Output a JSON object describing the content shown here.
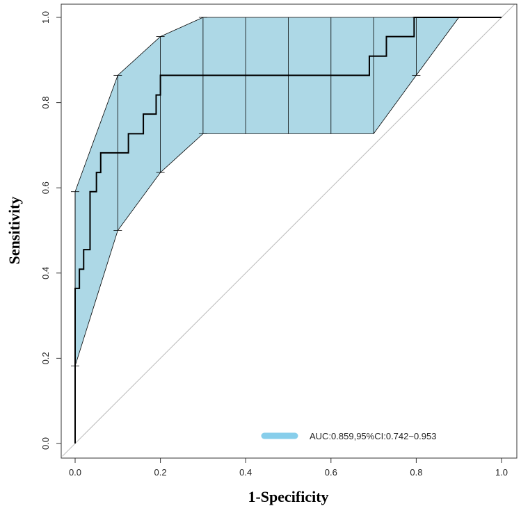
{
  "chart_data": {
    "type": "line",
    "title": "",
    "xlabel": "1-Specificity",
    "ylabel": "Sensitivity",
    "xlim": [
      0,
      1
    ],
    "ylim": [
      0,
      1
    ],
    "x_ticks": [
      "0.0",
      "0.2",
      "0.4",
      "0.6",
      "0.8",
      "1.0"
    ],
    "y_ticks": [
      "0.0",
      "0.2",
      "0.4",
      "0.6",
      "0.8",
      "1.0"
    ],
    "series": [
      {
        "name": "ROC curve",
        "color": "#000000",
        "points": [
          [
            0,
            0
          ],
          [
            0,
            0.364
          ],
          [
            0.01,
            0.364
          ],
          [
            0.01,
            0.409
          ],
          [
            0.02,
            0.409
          ],
          [
            0.02,
            0.455
          ],
          [
            0.035,
            0.455
          ],
          [
            0.035,
            0.591
          ],
          [
            0.05,
            0.591
          ],
          [
            0.05,
            0.636
          ],
          [
            0.06,
            0.636
          ],
          [
            0.06,
            0.682
          ],
          [
            0.125,
            0.682
          ],
          [
            0.125,
            0.727
          ],
          [
            0.16,
            0.727
          ],
          [
            0.16,
            0.773
          ],
          [
            0.19,
            0.773
          ],
          [
            0.19,
            0.818
          ],
          [
            0.2,
            0.818
          ],
          [
            0.2,
            0.864
          ],
          [
            0.69,
            0.864
          ],
          [
            0.69,
            0.909
          ],
          [
            0.73,
            0.909
          ],
          [
            0.73,
            0.955
          ],
          [
            0.795,
            0.955
          ],
          [
            0.795,
            1
          ],
          [
            1,
            1
          ]
        ]
      },
      {
        "name": "Reference line",
        "color": "#bbbbbb",
        "points": [
          [
            -0.03,
            -0.03
          ],
          [
            1.03,
            1.03
          ]
        ]
      }
    ],
    "ci_band": {
      "color": "#add8e6",
      "x": [
        0,
        0.1,
        0.2,
        0.3,
        0.4,
        0.5,
        0.6,
        0.7,
        0.8,
        0.9
      ],
      "lower": [
        0.182,
        0.5,
        0.636,
        0.727,
        0.727,
        0.727,
        0.727,
        0.727,
        0.864,
        1.0
      ],
      "upper": [
        0.591,
        0.864,
        0.955,
        1.0,
        1.0,
        1.0,
        1.0,
        1.0,
        1.0,
        1.0
      ],
      "capped_bars_at": [
        0,
        0.1,
        0.2,
        0.3,
        0.8
      ]
    },
    "legend": {
      "label": "AUC:0.859,95%CI:0.742~0.953",
      "color": "#87ceeb",
      "position": "bottom-right"
    }
  }
}
